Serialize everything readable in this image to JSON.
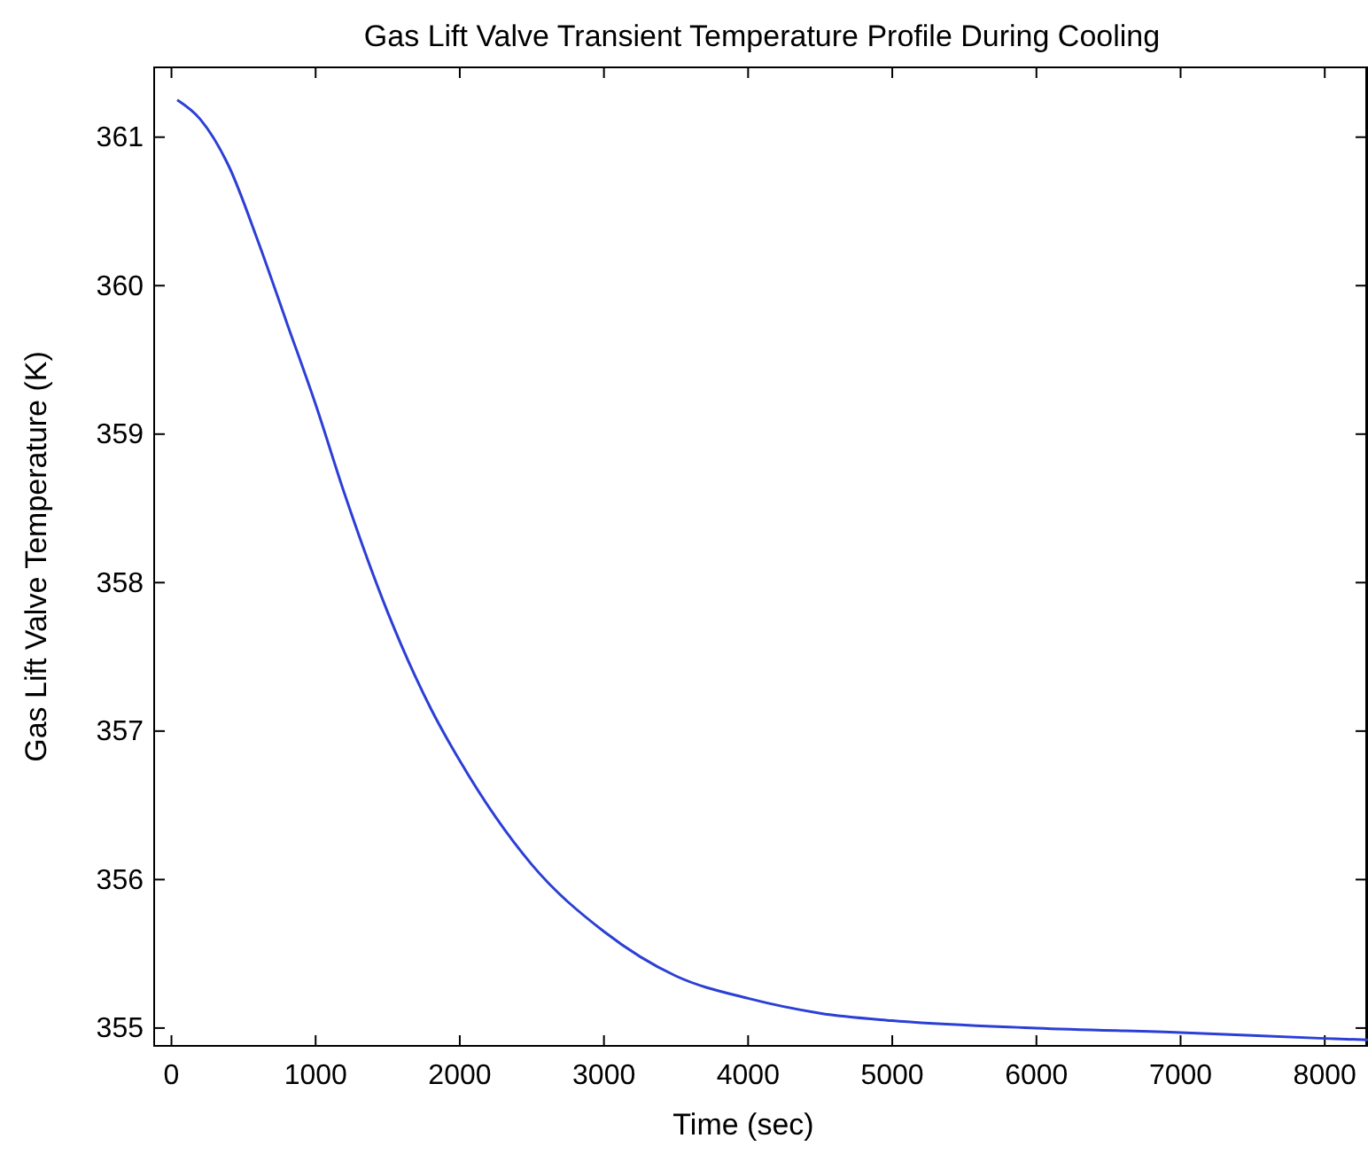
{
  "chart_data": {
    "type": "line",
    "title": "Gas Lift Valve Transient Temperature Profile During Cooling",
    "xlabel": "Time (sec)",
    "ylabel": "Gas Lift Valve Temperature (K)",
    "x": [
      40,
      200,
      400,
      600,
      800,
      1000,
      1200,
      1500,
      1800,
      2000,
      2500,
      3000,
      3500,
      4000,
      4500,
      5000,
      6000,
      7000,
      8000,
      8300
    ],
    "series": [
      {
        "color": "#2b3fd6",
        "values": [
          361.25,
          361.12,
          360.8,
          360.3,
          359.75,
          359.2,
          358.6,
          357.8,
          357.15,
          356.8,
          356.1,
          355.65,
          355.35,
          355.2,
          355.1,
          355.05,
          355.0,
          354.97,
          354.93,
          354.92
        ]
      }
    ],
    "xlim": [
      -120,
      8300
    ],
    "ylim": [
      354.88,
      361.47
    ],
    "xticks": [
      0,
      1000,
      2000,
      3000,
      4000,
      5000,
      6000,
      7000,
      8000
    ],
    "yticks": [
      355,
      356,
      357,
      358,
      359,
      360,
      361
    ],
    "marker": "none",
    "line_style": "solid"
  }
}
